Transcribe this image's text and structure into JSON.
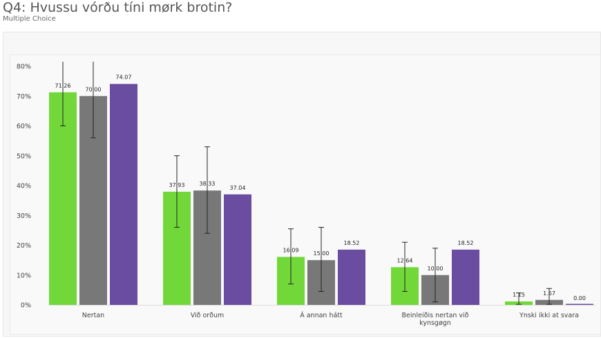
{
  "header": {
    "title": "Q4: Hvussu vórðu tíni mørk brotin?",
    "subtitle": "Multiple Choice"
  },
  "colors": {
    "series": [
      "#72d83a",
      "#787878",
      "#6a4ca0"
    ],
    "errorbar": "#222222",
    "axis_text": "#444444",
    "panel": "#f9f9f9"
  },
  "chart_data": {
    "type": "bar",
    "categories": [
      "Nertan",
      "Við orðum",
      "Á annan hátt",
      "Beinleiðis nertan við kynsgøgn",
      "Ynski ikki at svara"
    ],
    "category_lines": [
      [
        "Nertan"
      ],
      [
        "Við orðum"
      ],
      [
        "Á annan hátt"
      ],
      [
        "Beinleiðis nertan við",
        "kynsgøgn"
      ],
      [
        "Ynski ikki at svara"
      ]
    ],
    "series": [
      {
        "values": [
          71.26,
          37.93,
          16.09,
          12.64,
          1.15
        ],
        "labels": [
          "71.26",
          "37.93",
          "16.09",
          "12.64",
          "1.15"
        ],
        "error_low": [
          60.0,
          26.0,
          7.0,
          4.5,
          0.2
        ],
        "error_high": [
          81.5,
          50.0,
          25.5,
          21.0,
          4.0
        ]
      },
      {
        "values": [
          70.0,
          38.33,
          15.0,
          10.0,
          1.67
        ],
        "labels": [
          "70.00",
          "38.33",
          "15.00",
          "10.00",
          "1.67"
        ],
        "error_low": [
          56.0,
          24.0,
          4.5,
          1.0,
          0.2
        ],
        "error_high": [
          81.5,
          53.0,
          26.0,
          19.0,
          5.5
        ]
      },
      {
        "values": [
          74.07,
          37.04,
          18.52,
          18.52,
          0.0
        ],
        "labels": [
          "74.07",
          "37.04",
          "18.52",
          "18.52",
          "0.00"
        ],
        "error_low": null,
        "error_high": null
      }
    ],
    "ylim": [
      0,
      80
    ],
    "yticks": [
      0,
      10,
      20,
      30,
      40,
      50,
      60,
      70,
      80
    ],
    "ytick_labels": [
      "0%",
      "10%",
      "20%",
      "30%",
      "40%",
      "50%",
      "60%",
      "70%",
      "80%"
    ],
    "xlabel": "",
    "ylabel": "",
    "grid": false,
    "legend": "none"
  }
}
